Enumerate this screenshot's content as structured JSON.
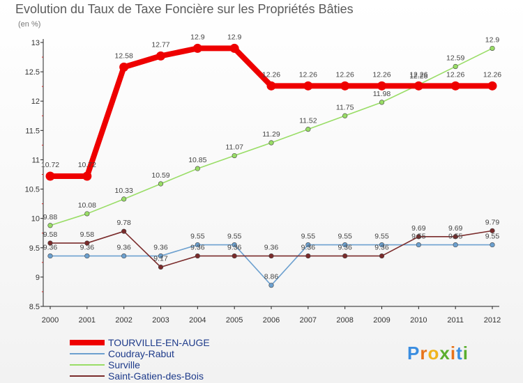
{
  "title": "Evolution du Taux de Taxe Foncière sur les Propriétés Bâties",
  "unit_label": "(en %)",
  "logo": {
    "text": "Proxiti",
    "letters": [
      "P",
      "r",
      "o",
      "x",
      "i",
      "t",
      "i"
    ],
    "colors": [
      "#3a8de0",
      "#e8731a",
      "#f0b41c",
      "#5aae2e",
      "#e8731a",
      "#3a8de0",
      "#5aae2e"
    ]
  },
  "chart_data": {
    "type": "line",
    "title": "Evolution du Taux de Taxe Foncière sur les Propriétés Bâties",
    "ylabel": "(en %)",
    "xlabel": "",
    "x": [
      "2000",
      "2001",
      "2002",
      "2003",
      "2004",
      "2005",
      "2006",
      "2007",
      "2008",
      "2009",
      "2010",
      "2011",
      "2012"
    ],
    "ylim": [
      8.5,
      13
    ],
    "yticks": [
      "8.5",
      "9",
      "9.5",
      "10",
      "10.5",
      "11",
      "11.5",
      "12",
      "12.5",
      "13"
    ],
    "legend_position": "bottom-left",
    "series": [
      {
        "name": "TOURVILLE-EN-AUGE",
        "color": "#ee0000",
        "values": [
          10.72,
          10.72,
          12.58,
          12.77,
          12.9,
          12.9,
          12.26,
          12.26,
          12.26,
          12.26,
          12.26,
          12.26,
          12.26
        ],
        "labels": [
          "10.72",
          "10.72",
          "12.58",
          "12.77",
          "12.9",
          "12.9",
          "12.26",
          "12.26",
          "12.26",
          "12.26",
          "12.26",
          "12.26",
          "12.26"
        ]
      },
      {
        "name": "Coudray-Rabut",
        "color": "#6ca0cf",
        "values": [
          9.36,
          9.36,
          9.36,
          9.36,
          9.55,
          9.55,
          8.86,
          9.55,
          9.55,
          9.55,
          9.55,
          9.55,
          9.55
        ],
        "labels": [
          "9.36",
          "9.36",
          "9.36",
          "9.36",
          "9.55",
          "9.55",
          "8.86",
          "9.55",
          "9.55",
          "9.55",
          "9.55",
          "9.55",
          "9.55"
        ]
      },
      {
        "name": "Surville",
        "color": "#99dd66",
        "values": [
          9.88,
          10.08,
          10.33,
          10.59,
          10.85,
          11.07,
          11.29,
          11.52,
          11.75,
          11.98,
          12.28,
          12.59,
          12.9
        ],
        "labels": [
          "9.88",
          "10.08",
          "10.33",
          "10.59",
          "10.85",
          "11.07",
          "11.29",
          "11.52",
          "11.75",
          "11.98",
          "12.28",
          "12.59",
          "12.9"
        ]
      },
      {
        "name": "Saint-Gatien-des-Bois",
        "color": "#7a2b2b",
        "values": [
          9.58,
          9.58,
          9.78,
          9.17,
          9.36,
          9.36,
          9.36,
          9.36,
          9.36,
          9.36,
          9.69,
          9.69,
          9.79
        ],
        "labels": [
          "9.58",
          "9.58",
          "9.78",
          "9.17",
          "9.36",
          "9.36",
          "9.36",
          "9.36",
          "9.36",
          "9.36",
          "9.69",
          "9.69",
          "9.79"
        ]
      }
    ]
  }
}
